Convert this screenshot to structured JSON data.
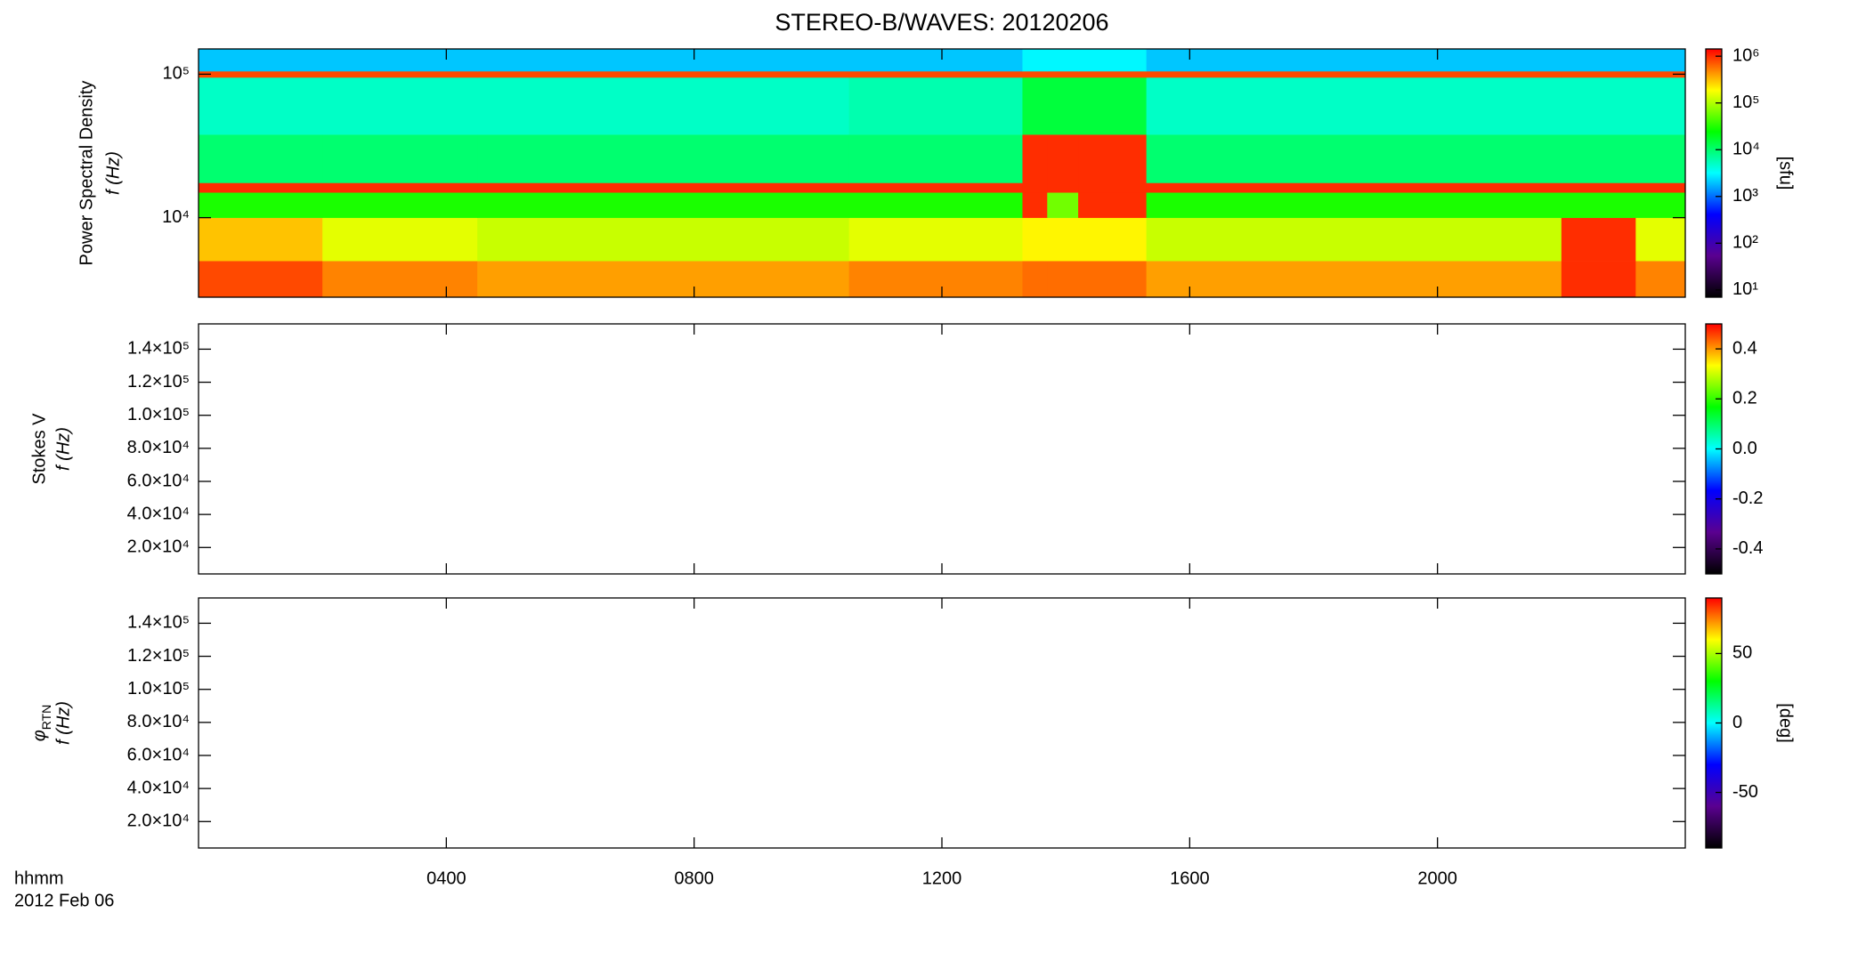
{
  "title": "STEREO-B/WAVES: 20120206",
  "x_axis": {
    "label": "hhmm",
    "date": "2012 Feb 06",
    "xlim": [
      0,
      24
    ],
    "xticks": [
      {
        "value": 4,
        "label": "0400"
      },
      {
        "value": 8,
        "label": "0800"
      },
      {
        "value": 12,
        "label": "1200"
      },
      {
        "value": 16,
        "label": "1600"
      },
      {
        "value": 20,
        "label": "2000"
      }
    ]
  },
  "chart_data": [
    {
      "type": "heatmap",
      "ylabel": [
        "Power Spectral Density",
        "f (Hz)"
      ],
      "ylog": true,
      "ylim": [
        2790,
        150000
      ],
      "yticks": [
        {
          "value": 10000,
          "label": "10⁴"
        },
        {
          "value": 100000,
          "label": "10⁵"
        }
      ],
      "x_edges": [
        0,
        2,
        4.5,
        10.5,
        13.3,
        13.7,
        14.2,
        15.3,
        22,
        23.2,
        24
      ],
      "y_edges": [
        2790,
        5000,
        10000,
        15000,
        17500,
        38000,
        95000,
        105000,
        150000
      ],
      "z": [
        [
          800000,
          500000,
          400000,
          500000,
          600000,
          600000,
          600000,
          400000,
          1000000,
          500000
        ],
        [
          300000,
          150000,
          120000,
          150000,
          200000,
          200000,
          200000,
          120000,
          1000000,
          150000
        ],
        [
          30000,
          30000,
          30000,
          30000,
          1000000,
          60000,
          1000000,
          30000,
          30000,
          30000
        ],
        [
          1000000,
          1000000,
          1000000,
          1000000,
          1000000,
          1000000,
          1000000,
          1000000,
          1000000,
          1000000
        ],
        [
          10000,
          10000,
          10000,
          10000,
          1000000,
          1000000,
          1000000,
          10000,
          10000,
          10000
        ],
        [
          5000,
          5000,
          5000,
          6000,
          15000,
          15000,
          15000,
          5000,
          5000,
          5000
        ],
        [
          800000,
          800000,
          800000,
          800000,
          800000,
          800000,
          800000,
          800000,
          800000,
          800000
        ],
        [
          2000,
          2000,
          2000,
          2000,
          3000,
          3000,
          3000,
          2000,
          2000,
          2000
        ]
      ],
      "clog": true,
      "clim": [
        7,
        1430000
      ],
      "cticks": [
        {
          "value": 10,
          "label": "10¹"
        },
        {
          "value": 100,
          "label": "10²"
        },
        {
          "value": 1000,
          "label": "10³"
        },
        {
          "value": 10000,
          "label": "10⁴"
        },
        {
          "value": 100000,
          "label": "10⁵"
        },
        {
          "value": 1000000,
          "label": "10⁶"
        }
      ],
      "clabel": "[sfu]",
      "colormap": [
        "#000000",
        "#5a0090",
        "#0000ff",
        "#00ffff",
        "#00ff00",
        "#ffff00",
        "#ff0000"
      ]
    },
    {
      "type": "heatmap",
      "ylabel": [
        "Stokes V",
        "f (Hz)"
      ],
      "ylog": false,
      "ylim": [
        4000,
        155300
      ],
      "yticks": [
        {
          "value": 20000,
          "label": "2.0×10⁴"
        },
        {
          "value": 40000,
          "label": "4.0×10⁴"
        },
        {
          "value": 60000,
          "label": "6.0×10⁴"
        },
        {
          "value": 80000,
          "label": "8.0×10⁴"
        },
        {
          "value": 100000,
          "label": "1.0×10⁵"
        },
        {
          "value": 120000,
          "label": "1.2×10⁵"
        },
        {
          "value": 140000,
          "label": "1.4×10⁵"
        }
      ],
      "clog": false,
      "clim": [
        -0.5,
        0.5
      ],
      "cticks": [
        -0.4,
        -0.2,
        {
          "value": 0,
          "label": "0.0"
        },
        0.2,
        0.4
      ],
      "colormap": [
        "#000000",
        "#5a0090",
        "#0000ff",
        "#00ffff",
        "#00ff00",
        "#ffff00",
        "#ff0000"
      ]
    },
    {
      "type": "heatmap",
      "ylabel": [
        "φ",
        "f (Hz)"
      ],
      "ylabel_sub": "RTN",
      "ylog": false,
      "ylim": [
        4000,
        155300
      ],
      "yticks": [
        {
          "value": 20000,
          "label": "2.0×10⁴"
        },
        {
          "value": 40000,
          "label": "4.0×10⁴"
        },
        {
          "value": 60000,
          "label": "6.0×10⁴"
        },
        {
          "value": 80000,
          "label": "8.0×10⁴"
        },
        {
          "value": 100000,
          "label": "1.0×10⁵"
        },
        {
          "value": 120000,
          "label": "1.2×10⁵"
        },
        {
          "value": 140000,
          "label": "1.4×10⁵"
        }
      ],
      "clog": false,
      "clim": [
        -90,
        90
      ],
      "cticks": [
        -50,
        0,
        50
      ],
      "clabel": "[deg]",
      "colormap": [
        "#000000",
        "#5a0090",
        "#0000ff",
        "#00ffff",
        "#00ff00",
        "#ffff00",
        "#ff0000"
      ]
    }
  ]
}
